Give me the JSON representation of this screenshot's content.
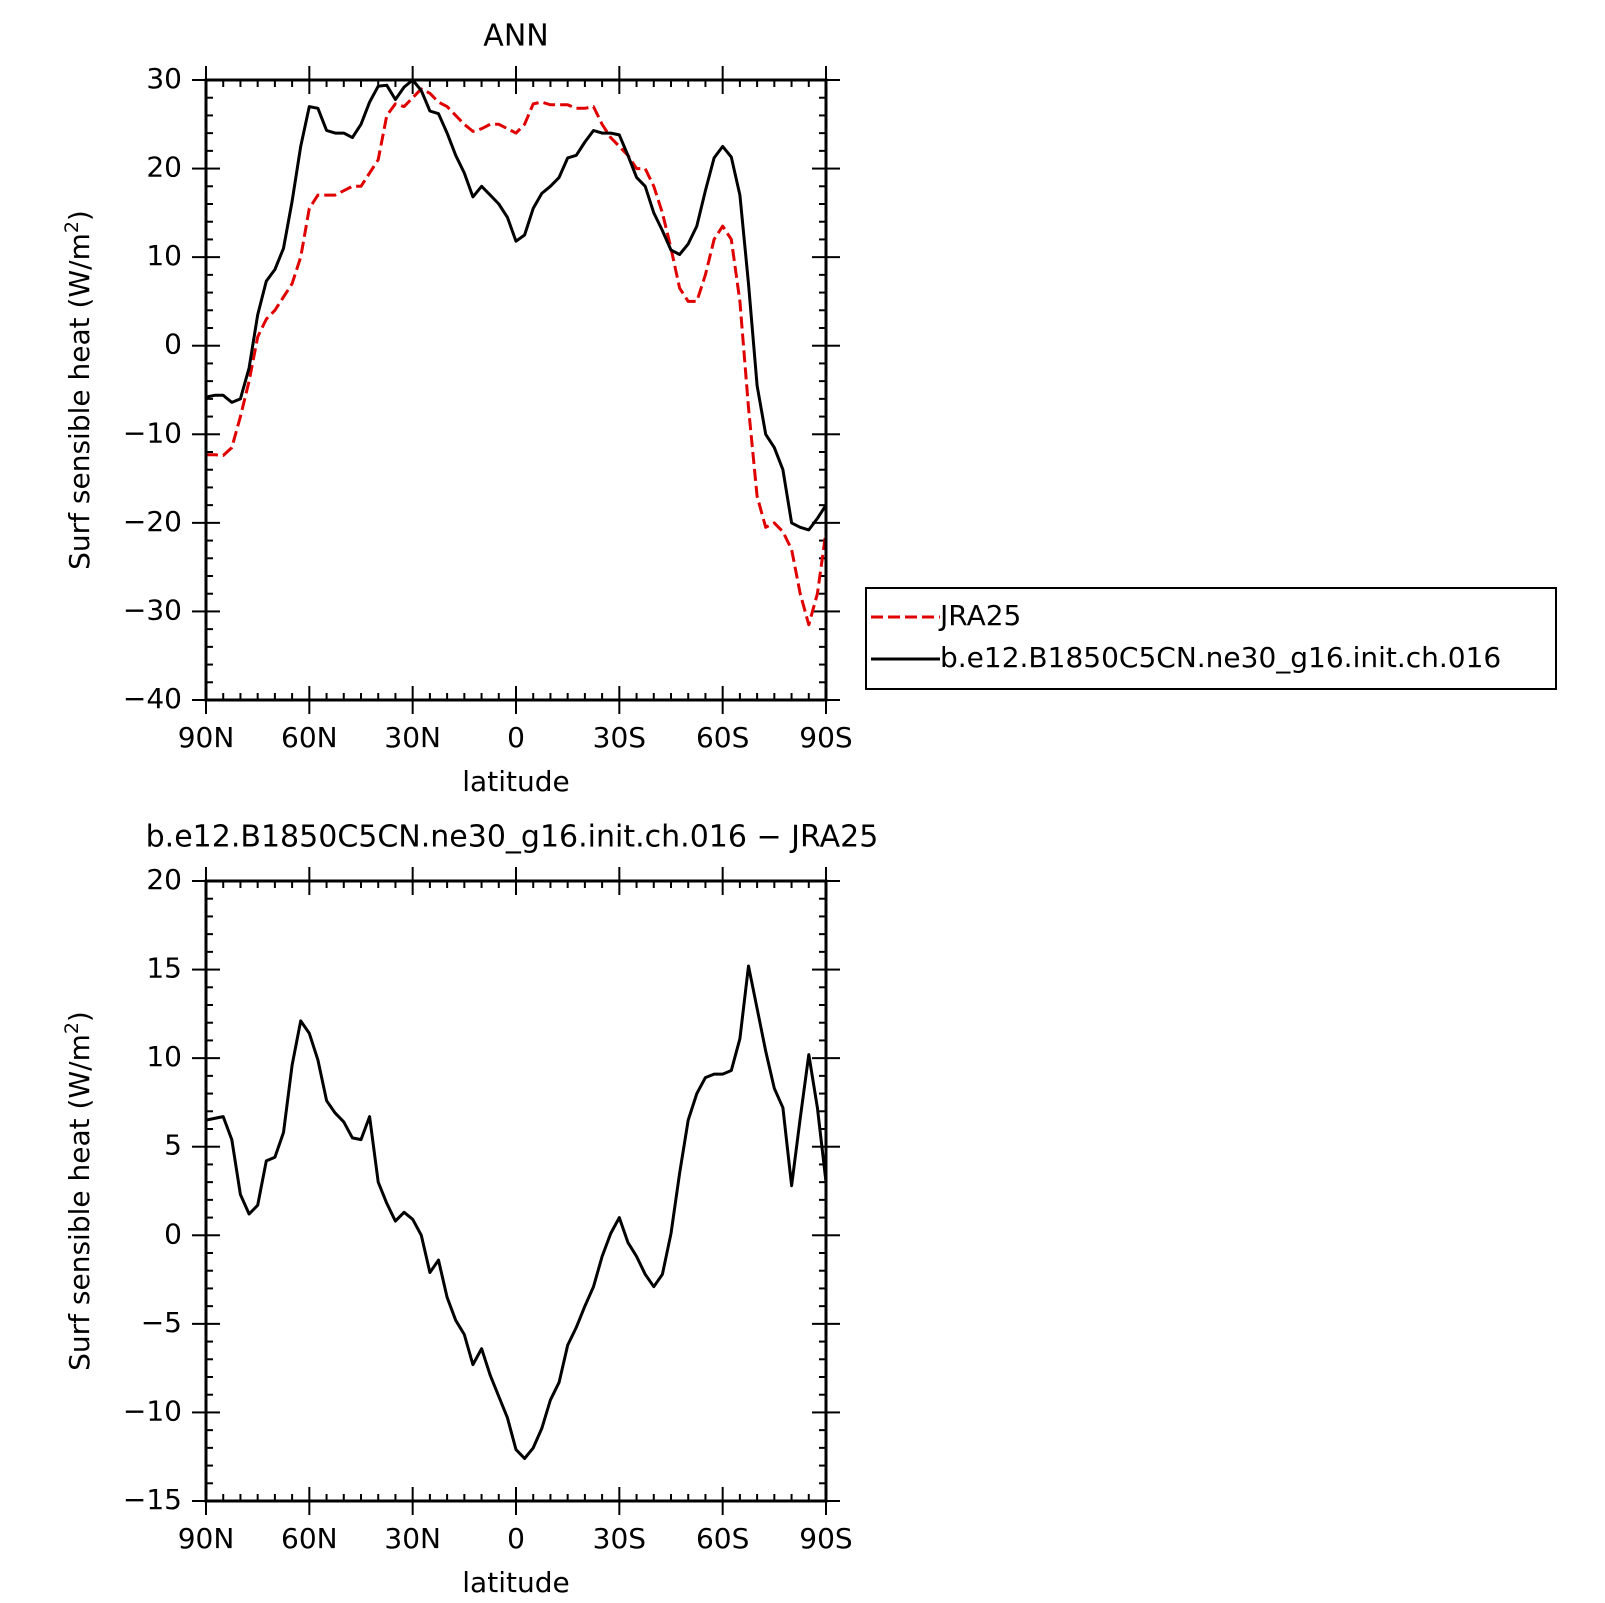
{
  "chart_data": [
    {
      "type": "line",
      "title": "ANN",
      "xlabel": "latitude",
      "ylabel": "Surf sensible heat (W/m²)",
      "ylabel_parts": {
        "main": "Surf sensible heat (W/m",
        "sup": "2",
        "tail": ")"
      },
      "xlim": [
        90,
        -90
      ],
      "ylim": [
        -40,
        30
      ],
      "x_ticks": [
        90,
        60,
        30,
        0,
        -30,
        -60,
        -90
      ],
      "x_tick_labels": [
        "90N",
        "60N",
        "30N",
        "0",
        "30S",
        "60S",
        "90S"
      ],
      "y_ticks": [
        -40,
        -30,
        -20,
        -10,
        0,
        10,
        20,
        30
      ],
      "y_tick_labels": [
        "−40",
        "−30",
        "−20",
        "−10",
        "0",
        "10",
        "20",
        "30"
      ],
      "legend": "right",
      "series": [
        {
          "name": "JRA25",
          "color": "#e00000",
          "dash": "dashed",
          "points": [
            [
              90,
              -12.3
            ],
            [
              87.5,
              -12.3
            ],
            [
              85,
              -12.4
            ],
            [
              82.5,
              -11.5
            ],
            [
              80,
              -8
            ],
            [
              77.5,
              -4
            ],
            [
              75,
              1
            ],
            [
              72.5,
              3
            ],
            [
              70,
              4
            ],
            [
              67.5,
              5.5
            ],
            [
              65,
              7
            ],
            [
              62.5,
              10
            ],
            [
              60,
              15.5
            ],
            [
              57.5,
              17
            ],
            [
              55,
              17
            ],
            [
              52.5,
              17
            ],
            [
              50,
              17.5
            ],
            [
              47.5,
              18
            ],
            [
              45,
              18
            ],
            [
              42.5,
              19.5
            ],
            [
              40,
              21
            ],
            [
              37.5,
              26
            ],
            [
              35,
              27.3
            ],
            [
              32.5,
              27
            ],
            [
              30,
              28
            ],
            [
              27.5,
              29
            ],
            [
              25,
              28.5
            ],
            [
              22.5,
              27.5
            ],
            [
              20,
              27
            ],
            [
              17.5,
              26
            ],
            [
              15,
              25
            ],
            [
              12.5,
              24.2
            ],
            [
              10,
              24.5
            ],
            [
              7.5,
              25
            ],
            [
              5,
              25
            ],
            [
              2.5,
              24.5
            ],
            [
              0,
              24
            ],
            [
              -2.5,
              25
            ],
            [
              -5,
              27.3
            ],
            [
              -7.5,
              27.5
            ],
            [
              -10,
              27.2
            ],
            [
              -12.5,
              27.2
            ],
            [
              -15,
              27.2
            ],
            [
              -17.5,
              26.8
            ],
            [
              -20,
              26.8
            ],
            [
              -22.5,
              27
            ],
            [
              -25,
              25
            ],
            [
              -27.5,
              23.5
            ],
            [
              -30,
              22.5
            ],
            [
              -32.5,
              21.5
            ],
            [
              -35,
              20
            ],
            [
              -37.5,
              20
            ],
            [
              -40,
              18
            ],
            [
              -42.5,
              15
            ],
            [
              -45,
              11
            ],
            [
              -47.5,
              6.5
            ],
            [
              -50,
              5
            ],
            [
              -52.5,
              5
            ],
            [
              -55,
              8
            ],
            [
              -57.5,
              12
            ],
            [
              -60,
              13.5
            ],
            [
              -62.5,
              12
            ],
            [
              -65,
              5
            ],
            [
              -67.5,
              -7
            ],
            [
              -70,
              -17
            ],
            [
              -72.5,
              -20.5
            ],
            [
              -75,
              -20
            ],
            [
              -77.5,
              -21
            ],
            [
              -80,
              -23
            ],
            [
              -82.5,
              -28
            ],
            [
              -85,
              -31.5
            ],
            [
              -87.5,
              -28
            ],
            [
              -90,
              -21
            ]
          ]
        },
        {
          "name": "b.e12.B1850C5CN.ne30_g16.init.ch.016",
          "color": "#000000",
          "dash": "solid",
          "points": [
            [
              90,
              -5.8
            ],
            [
              87.5,
              -5.6
            ],
            [
              85,
              -5.6
            ],
            [
              82.5,
              -6.4
            ],
            [
              80,
              -6
            ],
            [
              77.5,
              -2.5
            ],
            [
              75,
              3.5
            ],
            [
              72.5,
              7.3
            ],
            [
              70,
              8.6
            ],
            [
              67.5,
              11
            ],
            [
              65,
              16.3
            ],
            [
              62.5,
              22.5
            ],
            [
              60,
              27
            ],
            [
              57.5,
              26.8
            ],
            [
              55,
              24.3
            ],
            [
              52.5,
              24
            ],
            [
              50,
              24
            ],
            [
              47.5,
              23.5
            ],
            [
              45,
              25
            ],
            [
              42.5,
              27.5
            ],
            [
              40,
              29.3
            ],
            [
              37.5,
              29.4
            ],
            [
              35,
              27.8
            ],
            [
              32.5,
              29.2
            ],
            [
              30,
              30
            ],
            [
              27.5,
              28.8
            ],
            [
              25,
              26.5
            ],
            [
              22.5,
              26.2
            ],
            [
              20,
              24
            ],
            [
              17.5,
              21.5
            ],
            [
              15,
              19.5
            ],
            [
              12.5,
              16.8
            ],
            [
              10,
              18
            ],
            [
              7.5,
              17
            ],
            [
              5,
              16
            ],
            [
              2.5,
              14.5
            ],
            [
              0,
              11.8
            ],
            [
              -2.5,
              12.5
            ],
            [
              -5,
              15.5
            ],
            [
              -7.5,
              17.2
            ],
            [
              -10,
              18
            ],
            [
              -12.5,
              19
            ],
            [
              -15,
              21.2
            ],
            [
              -17.5,
              21.5
            ],
            [
              -20,
              23
            ],
            [
              -22.5,
              24.3
            ],
            [
              -25,
              24
            ],
            [
              -27.5,
              24
            ],
            [
              -30,
              23.8
            ],
            [
              -32.5,
              21.5
            ],
            [
              -35,
              19
            ],
            [
              -37.5,
              18
            ],
            [
              -40,
              15
            ],
            [
              -42.5,
              13
            ],
            [
              -45,
              10.8
            ],
            [
              -47.5,
              10.3
            ],
            [
              -50,
              11.5
            ],
            [
              -52.5,
              13.5
            ],
            [
              -55,
              17.5
            ],
            [
              -57.5,
              21.2
            ],
            [
              -60,
              22.5
            ],
            [
              -62.5,
              21.3
            ],
            [
              -65,
              17
            ],
            [
              -67.5,
              7
            ],
            [
              -70,
              -4.5
            ],
            [
              -72.5,
              -10
            ],
            [
              -75,
              -11.5
            ],
            [
              -77.5,
              -14
            ],
            [
              -80,
              -20
            ],
            [
              -82.5,
              -20.5
            ],
            [
              -85,
              -20.8
            ],
            [
              -87.5,
              -19.5
            ],
            [
              -90,
              -18
            ]
          ]
        }
      ]
    },
    {
      "type": "line",
      "title": "b.e12.B1850C5CN.ne30_g16.init.ch.016 − JRA25",
      "xlabel": "latitude",
      "ylabel": "Surf sensible heat (W/m²)",
      "ylabel_parts": {
        "main": "Surf sensible heat (W/m",
        "sup": "2",
        "tail": ")"
      },
      "xlim": [
        90,
        -90
      ],
      "ylim": [
        -15,
        20
      ],
      "x_ticks": [
        90,
        60,
        30,
        0,
        -30,
        -60,
        -90
      ],
      "x_tick_labels": [
        "90N",
        "60N",
        "30N",
        "0",
        "30S",
        "60S",
        "90S"
      ],
      "y_ticks": [
        -15,
        -10,
        -5,
        0,
        5,
        10,
        15,
        20
      ],
      "y_tick_labels": [
        "−15",
        "−10",
        "−5",
        "0",
        "5",
        "10",
        "15",
        "20"
      ],
      "series": [
        {
          "color": "#000000",
          "dash": "solid",
          "points": [
            [
              90,
              6.5
            ],
            [
              87.5,
              6.6
            ],
            [
              85,
              6.7
            ],
            [
              82.5,
              5.4
            ],
            [
              80,
              2.3
            ],
            [
              77.5,
              1.2
            ],
            [
              75,
              1.7
            ],
            [
              72.5,
              4.2
            ],
            [
              70,
              4.4
            ],
            [
              67.5,
              5.8
            ],
            [
              65,
              9.6
            ],
            [
              62.5,
              12.1
            ],
            [
              60,
              11.4
            ],
            [
              57.5,
              9.9
            ],
            [
              55,
              7.6
            ],
            [
              52.5,
              6.9
            ],
            [
              50,
              6.4
            ],
            [
              47.5,
              5.5
            ],
            [
              45,
              5.4
            ],
            [
              42.5,
              6.7
            ],
            [
              40,
              3.0
            ],
            [
              37.5,
              1.8
            ],
            [
              35,
              0.8
            ],
            [
              32.5,
              1.3
            ],
            [
              30,
              0.9
            ],
            [
              27.5,
              0
            ],
            [
              25,
              -2.1
            ],
            [
              22.5,
              -1.4
            ],
            [
              20,
              -3.5
            ],
            [
              17.5,
              -4.8
            ],
            [
              15,
              -5.6
            ],
            [
              12.5,
              -7.3
            ],
            [
              10,
              -6.4
            ],
            [
              7.5,
              -7.9
            ],
            [
              5,
              -9.1
            ],
            [
              2.5,
              -10.3
            ],
            [
              0,
              -12.1
            ],
            [
              -2.5,
              -12.6
            ],
            [
              -5,
              -12
            ],
            [
              -7.5,
              -10.9
            ],
            [
              -10,
              -9.3
            ],
            [
              -12.5,
              -8.3
            ],
            [
              -15,
              -6.2
            ],
            [
              -17.5,
              -5.2
            ],
            [
              -20,
              -4
            ],
            [
              -22.5,
              -2.9
            ],
            [
              -25,
              -1.2
            ],
            [
              -27.5,
              0.1
            ],
            [
              -30,
              1.0
            ],
            [
              -32.5,
              -0.4
            ],
            [
              -35,
              -1.2
            ],
            [
              -37.5,
              -2.2
            ],
            [
              -40,
              -2.9
            ],
            [
              -42.5,
              -2.2
            ],
            [
              -45,
              0.1
            ],
            [
              -47.5,
              3.5
            ],
            [
              -50,
              6.5
            ],
            [
              -52.5,
              8
            ],
            [
              -55,
              8.9
            ],
            [
              -57.5,
              9.1
            ],
            [
              -60,
              9.1
            ],
            [
              -62.5,
              9.3
            ],
            [
              -65,
              11.1
            ],
            [
              -67.5,
              15.2
            ],
            [
              -70,
              12.8
            ],
            [
              -72.5,
              10.4
            ],
            [
              -75,
              8.3
            ],
            [
              -77.5,
              7.2
            ],
            [
              -80,
              2.8
            ],
            [
              -82.5,
              6.6
            ],
            [
              -85,
              10.2
            ],
            [
              -87.5,
              7.2
            ],
            [
              -90,
              3
            ]
          ]
        }
      ]
    }
  ]
}
